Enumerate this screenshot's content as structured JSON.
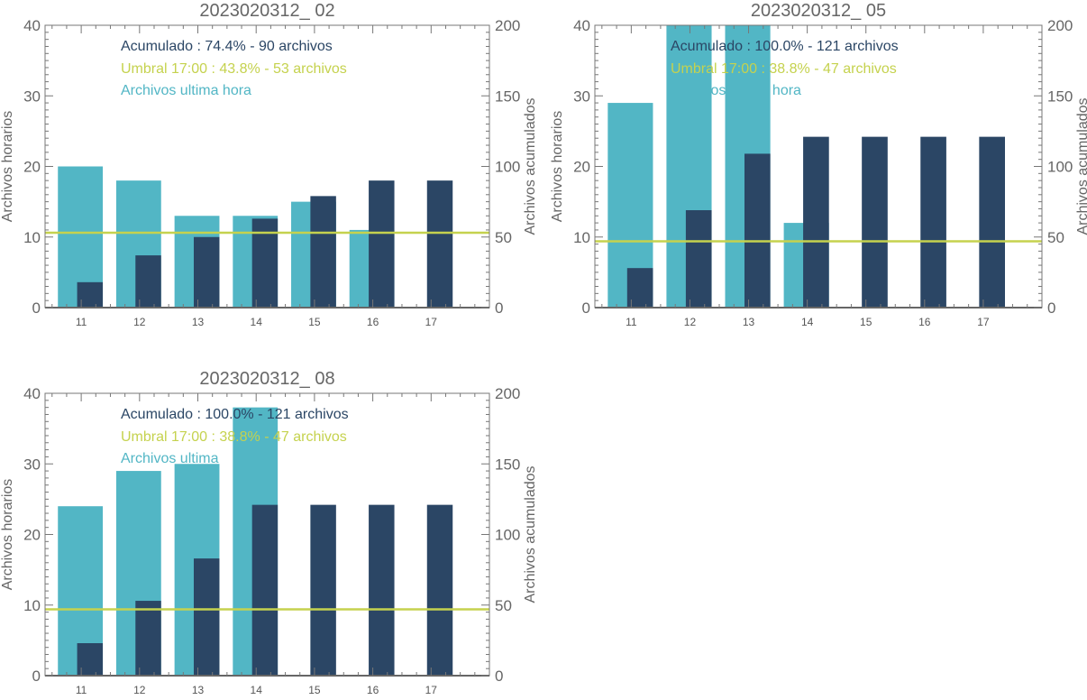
{
  "colors": {
    "hourly": "#52b6c5",
    "cumulative": "#2b4665",
    "threshold": "#c5d24e",
    "axis": "#666666"
  },
  "chart_data": [
    {
      "type": "bar",
      "title": "2023020312_ 02",
      "categories": [
        "11",
        "12",
        "13",
        "14",
        "15",
        "16",
        "17"
      ],
      "ylabel": "Archivos horarios",
      "y2label": "Archivos acumulados",
      "ylim": [
        0,
        40
      ],
      "y2lim": [
        0,
        200
      ],
      "yticks": [
        "0",
        "10",
        "20",
        "30",
        "40"
      ],
      "y2ticks": [
        "0",
        "50",
        "100",
        "150",
        "200"
      ],
      "series": [
        {
          "name": "Archivos ultima hora",
          "axis": "left",
          "values": [
            20,
            18,
            13,
            13,
            15,
            11,
            0
          ]
        },
        {
          "name": "Acumulado",
          "axis": "right",
          "values": [
            18,
            37,
            50,
            63,
            79,
            90,
            90
          ]
        }
      ],
      "threshold": 53,
      "legend": [
        "Acumulado : 74.4% - 90 archivos",
        "Umbral 17:00 : 43.8% - 53 archivos",
        "Archivos ultima hora"
      ]
    },
    {
      "type": "bar",
      "title": "2023020312_ 05",
      "categories": [
        "11",
        "12",
        "13",
        "14",
        "15",
        "16",
        "17"
      ],
      "ylabel": "Archivos horarios",
      "y2label": "Archivos acumulados",
      "ylim": [
        0,
        40
      ],
      "y2lim": [
        0,
        200
      ],
      "yticks": [
        "0",
        "10",
        "20",
        "30",
        "40"
      ],
      "y2ticks": [
        "0",
        "50",
        "100",
        "150",
        "200"
      ],
      "series": [
        {
          "name": "Archivos ultima hora",
          "axis": "left",
          "values": [
            29,
            40,
            40,
            12,
            0,
            0,
            0
          ]
        },
        {
          "name": "Acumulado",
          "axis": "right",
          "values": [
            28,
            69,
            109,
            121,
            121,
            121,
            121
          ]
        }
      ],
      "threshold": 47,
      "legend": [
        "Acumulado : 100.0% - 121 archivos",
        "Umbral 17:00 : 38.8% - 47 archivos",
        "Archivos ultima hora"
      ]
    },
    {
      "type": "bar",
      "title": "2023020312_ 08",
      "categories": [
        "11",
        "12",
        "13",
        "14",
        "15",
        "16",
        "17"
      ],
      "ylabel": "Archivos horarios",
      "y2label": "Archivos acumulados",
      "ylim": [
        0,
        40
      ],
      "y2lim": [
        0,
        200
      ],
      "yticks": [
        "0",
        "10",
        "20",
        "30",
        "40"
      ],
      "y2ticks": [
        "0",
        "50",
        "100",
        "150",
        "200"
      ],
      "series": [
        {
          "name": "Archivos ultima hora",
          "axis": "left",
          "values": [
            24,
            29,
            30,
            38,
            0,
            0,
            0
          ]
        },
        {
          "name": "Acumulado",
          "axis": "right",
          "values": [
            23,
            53,
            83,
            121,
            121,
            121,
            121
          ]
        }
      ],
      "threshold": 47,
      "legend": [
        "Acumulado : 100.0% - 121 archivos",
        "Umbral 17:00 : 38.8% - 47 archivos",
        "Archivos ultima"
      ]
    }
  ]
}
